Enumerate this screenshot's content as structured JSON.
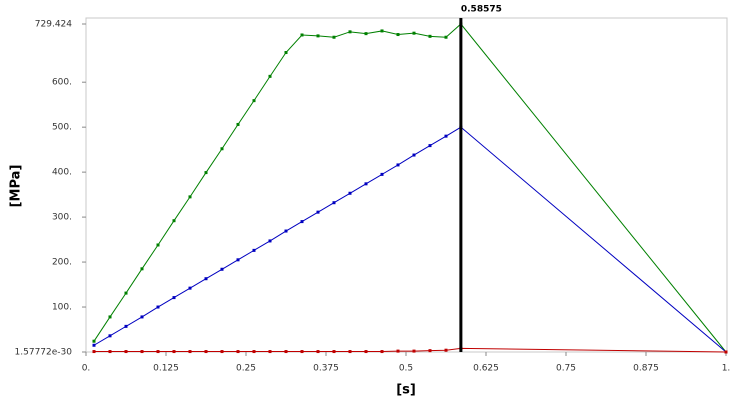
{
  "chart_data": {
    "type": "line",
    "y_label": "[MPa]",
    "x_label": "[s]",
    "annotation": {
      "x": 0.58575,
      "label": "0.58575"
    },
    "x": [
      0.0125,
      0.0375,
      0.0625,
      0.0875,
      0.1125,
      0.1375,
      0.1625,
      0.1875,
      0.2125,
      0.2375,
      0.2625,
      0.2875,
      0.3125,
      0.3375,
      0.3625,
      0.3875,
      0.4125,
      0.4375,
      0.4625,
      0.4875,
      0.5125,
      0.5375,
      0.5625,
      0.58575,
      1
    ],
    "series": [
      {
        "color": "#008000",
        "values": [
          24,
          78,
          131,
          185,
          238,
          292,
          345,
          399,
          452,
          506,
          559,
          613,
          666,
          705,
          703,
          700,
          712,
          708,
          714,
          706,
          709,
          702,
          700,
          729.424,
          0
        ]
      },
      {
        "color": "#0000c0",
        "values": [
          15,
          36,
          57,
          78,
          100,
          121,
          142,
          163,
          184,
          205,
          226,
          247,
          269,
          290,
          311,
          332,
          353,
          374,
          395,
          416,
          438,
          459,
          480,
          500,
          0
        ]
      },
      {
        "color": "#c00000",
        "values": [
          1,
          1,
          1,
          1,
          1,
          1,
          1,
          1,
          1,
          1,
          1,
          1,
          1,
          1,
          1,
          1,
          1,
          1,
          1,
          2,
          2,
          3,
          4,
          8,
          0
        ]
      }
    ],
    "xlim": [
      0,
      1
    ],
    "xticks": [
      {
        "value": 0,
        "label": "0."
      },
      0.125,
      0.25,
      0.375,
      0.5,
      0.625,
      0.75,
      0.875,
      {
        "value": 1,
        "label": "1."
      }
    ],
    "ylim": [
      1.57772e-30,
      729.424
    ],
    "yticks": [
      1.57772e-30,
      {
        "value": 100,
        "label": "100."
      },
      {
        "value": 200,
        "label": "200."
      },
      {
        "value": 300,
        "label": "300."
      },
      {
        "value": 400,
        "label": "400."
      },
      {
        "value": 500,
        "label": "500."
      },
      {
        "value": 600,
        "label": "600."
      },
      729.424
    ]
  }
}
